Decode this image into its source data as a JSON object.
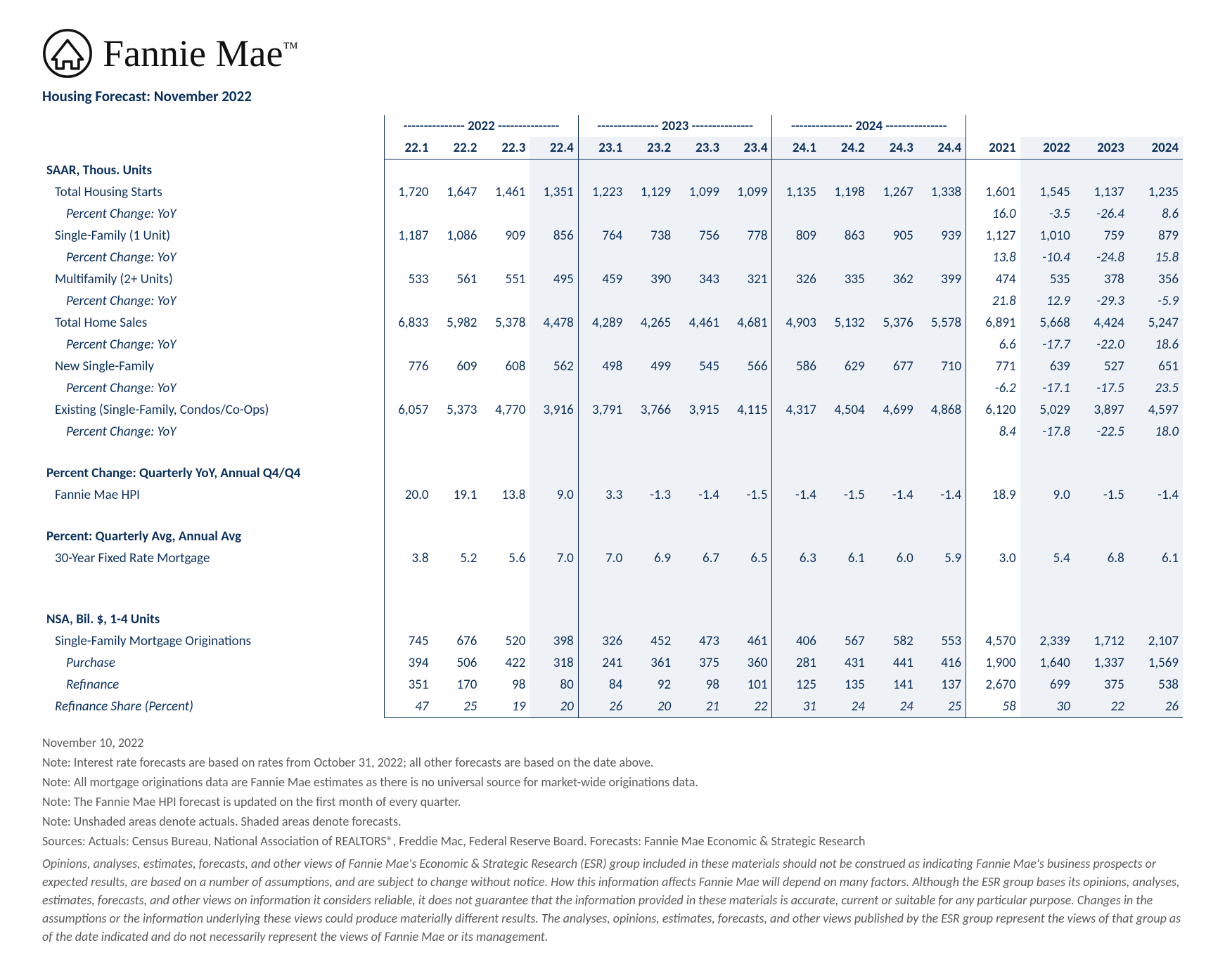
{
  "brand": "Fannie Mae",
  "report_title": "Housing Forecast: November 2022",
  "columns": {
    "year_bands": [
      "2022",
      "2023",
      "2024"
    ],
    "quarters": [
      "22.1",
      "22.2",
      "22.3",
      "22.4",
      "23.1",
      "23.2",
      "23.3",
      "23.4",
      "24.1",
      "24.2",
      "24.3",
      "24.4"
    ],
    "annuals": [
      "2021",
      "2022",
      "2023",
      "2024"
    ]
  },
  "sections": [
    {
      "type": "header",
      "label": "SAAR, Thous. Units"
    },
    {
      "label": "Total Housing Starts",
      "indent": 1,
      "q": [
        "1,720",
        "1,647",
        "1,461",
        "1,351",
        "1,223",
        "1,129",
        "1,099",
        "1,099",
        "1,135",
        "1,198",
        "1,267",
        "1,338"
      ],
      "a": [
        "1,601",
        "1,545",
        "1,137",
        "1,235"
      ]
    },
    {
      "label": "Percent Change: YoY",
      "indent": 2,
      "q": [
        "",
        "",
        "",
        "",
        "",
        "",
        "",
        "",
        "",
        "",
        "",
        ""
      ],
      "a": [
        "16.0",
        "-3.5",
        "-26.4",
        "8.6"
      ],
      "italic": true
    },
    {
      "label": "Single-Family (1 Unit)",
      "indent": 1,
      "q": [
        "1,187",
        "1,086",
        "909",
        "856",
        "764",
        "738",
        "756",
        "778",
        "809",
        "863",
        "905",
        "939"
      ],
      "a": [
        "1,127",
        "1,010",
        "759",
        "879"
      ]
    },
    {
      "label": "Percent Change: YoY",
      "indent": 2,
      "q": [
        "",
        "",
        "",
        "",
        "",
        "",
        "",
        "",
        "",
        "",
        "",
        ""
      ],
      "a": [
        "13.8",
        "-10.4",
        "-24.8",
        "15.8"
      ],
      "italic": true
    },
    {
      "label": "Multifamily (2+ Units)",
      "indent": 1,
      "q": [
        "533",
        "561",
        "551",
        "495",
        "459",
        "390",
        "343",
        "321",
        "326",
        "335",
        "362",
        "399"
      ],
      "a": [
        "474",
        "535",
        "378",
        "356"
      ]
    },
    {
      "label": "Percent Change: YoY",
      "indent": 2,
      "q": [
        "",
        "",
        "",
        "",
        "",
        "",
        "",
        "",
        "",
        "",
        "",
        ""
      ],
      "a": [
        "21.8",
        "12.9",
        "-29.3",
        "-5.9"
      ],
      "italic": true
    },
    {
      "label": "Total Home Sales",
      "indent": 1,
      "q": [
        "6,833",
        "5,982",
        "5,378",
        "4,478",
        "4,289",
        "4,265",
        "4,461",
        "4,681",
        "4,903",
        "5,132",
        "5,376",
        "5,578"
      ],
      "a": [
        "6,891",
        "5,668",
        "4,424",
        "5,247"
      ]
    },
    {
      "label": "Percent Change: YoY",
      "indent": 2,
      "q": [
        "",
        "",
        "",
        "",
        "",
        "",
        "",
        "",
        "",
        "",
        "",
        ""
      ],
      "a": [
        "6.6",
        "-17.7",
        "-22.0",
        "18.6"
      ],
      "italic": true
    },
    {
      "label": "New Single-Family",
      "indent": 1,
      "q": [
        "776",
        "609",
        "608",
        "562",
        "498",
        "499",
        "545",
        "566",
        "586",
        "629",
        "677",
        "710"
      ],
      "a": [
        "771",
        "639",
        "527",
        "651"
      ]
    },
    {
      "label": "Percent Change: YoY",
      "indent": 2,
      "q": [
        "",
        "",
        "",
        "",
        "",
        "",
        "",
        "",
        "",
        "",
        "",
        ""
      ],
      "a": [
        "-6.2",
        "-17.1",
        "-17.5",
        "23.5"
      ],
      "italic": true
    },
    {
      "label": "Existing (Single-Family, Condos/Co-Ops)",
      "indent": 1,
      "q": [
        "6,057",
        "5,373",
        "4,770",
        "3,916",
        "3,791",
        "3,766",
        "3,915",
        "4,115",
        "4,317",
        "4,504",
        "4,699",
        "4,868"
      ],
      "a": [
        "6,120",
        "5,029",
        "3,897",
        "4,597"
      ]
    },
    {
      "label": "Percent Change: YoY",
      "indent": 2,
      "q": [
        "",
        "",
        "",
        "",
        "",
        "",
        "",
        "",
        "",
        "",
        "",
        ""
      ],
      "a": [
        "8.4",
        "-17.8",
        "-22.5",
        "18.0"
      ],
      "italic": true
    },
    {
      "type": "gap"
    },
    {
      "type": "header",
      "label": "Percent Change: Quarterly YoY, Annual Q4/Q4"
    },
    {
      "label": "Fannie Mae HPI",
      "indent": 1,
      "q": [
        "20.0",
        "19.1",
        "13.8",
        "9.0",
        "3.3",
        "-1.3",
        "-1.4",
        "-1.5",
        "-1.4",
        "-1.5",
        "-1.4",
        "-1.4"
      ],
      "a": [
        "18.9",
        "9.0",
        "-1.5",
        "-1.4"
      ]
    },
    {
      "type": "gap"
    },
    {
      "type": "header",
      "label": "Percent: Quarterly Avg, Annual Avg"
    },
    {
      "label": "30-Year Fixed Rate Mortgage",
      "indent": 1,
      "q": [
        "3.8",
        "5.2",
        "5.6",
        "7.0",
        "7.0",
        "6.9",
        "6.7",
        "6.5",
        "6.3",
        "6.1",
        "6.0",
        "5.9"
      ],
      "a": [
        "3.0",
        "5.4",
        "6.8",
        "6.1"
      ]
    },
    {
      "type": "gap"
    },
    {
      "type": "gap"
    },
    {
      "type": "header",
      "label": "NSA, Bil. $, 1-4 Units"
    },
    {
      "label": "Single-Family Mortgage Originations",
      "indent": 1,
      "q": [
        "745",
        "676",
        "520",
        "398",
        "326",
        "452",
        "473",
        "461",
        "406",
        "567",
        "582",
        "553"
      ],
      "a": [
        "4,570",
        "2,339",
        "1,712",
        "2,107"
      ]
    },
    {
      "label": "Purchase",
      "indent": 2,
      "q": [
        "394",
        "506",
        "422",
        "318",
        "241",
        "361",
        "375",
        "360",
        "281",
        "431",
        "441",
        "416"
      ],
      "a": [
        "1,900",
        "1,640",
        "1,337",
        "1,569"
      ],
      "italic": false
    },
    {
      "label": "Refinance",
      "indent": 2,
      "q": [
        "351",
        "170",
        "98",
        "80",
        "84",
        "92",
        "98",
        "101",
        "125",
        "135",
        "141",
        "137"
      ],
      "a": [
        "2,670",
        "699",
        "375",
        "538"
      ],
      "italic": false
    },
    {
      "label": "Refinance Share (Percent)",
      "indent": 1,
      "italic": true,
      "q": [
        "47",
        "25",
        "19",
        "20",
        "26",
        "20",
        "21",
        "22",
        "31",
        "24",
        "24",
        "25"
      ],
      "a": [
        "58",
        "30",
        "22",
        "26"
      ],
      "last": true
    }
  ],
  "shade_from_q_index": 3,
  "shade_annual_from": 1,
  "footnotes": {
    "date": "November 10, 2022",
    "notes": [
      "Note: Interest rate forecasts are based on rates from October 31, 2022; all other forecasts are based on the date above.",
      "Note: All mortgage originations data are Fannie Mae estimates as there is no universal source for market-wide originations data.",
      "Note: The Fannie Mae HPI forecast is updated on the first month of every quarter.",
      "Note: Unshaded areas denote actuals. Shaded areas denote forecasts.",
      "Sources: Actuals: Census Bureau, National Association of REALTORS®, Freddie Mac, Federal Reserve Board. Forecasts: Fannie Mae Economic & Strategic Research"
    ],
    "disclaimer": "Opinions, analyses, estimates, forecasts, and other views of Fannie Mae's Economic & Strategic Research (ESR) group included in these materials should not be construed as indicating Fannie Mae's business prospects or expected results, are based on a number of assumptions, and are subject to change without notice. How this information affects Fannie Mae will depend on many factors. Although the ESR group bases its opinions, analyses, estimates, forecasts, and other views on information it considers reliable, it does not guarantee that the information provided in these materials is accurate, current or suitable for any particular purpose. Changes in the assumptions or the information underlying these views could produce materially different results. The analyses, opinions, estimates, forecasts, and other views published by the ESR group represent the views of that group as of the date indicated and do not necessarily represent the views of Fannie Mae or its management."
  },
  "colors": {
    "text": "#0a2f5c",
    "shade": "#eef2f6",
    "footnote": "#5a5a5a",
    "background": "#ffffff"
  }
}
